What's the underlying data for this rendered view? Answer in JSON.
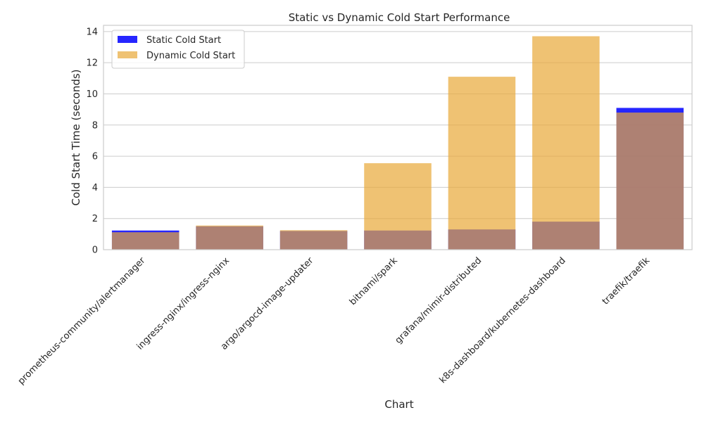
{
  "chart_data": {
    "type": "bar",
    "title": "Static vs Dynamic Cold Start Performance",
    "xlabel": "Chart",
    "ylabel": "Cold Start Time (seconds)",
    "ylim": [
      0,
      14.4
    ],
    "yticks": [
      0,
      2,
      4,
      6,
      8,
      10,
      12,
      14
    ],
    "grid": true,
    "legend_position": "top-left",
    "categories": [
      "prometheus-community/alertmanager",
      "ingress-nginx/ingress-nginx",
      "argo/argocd-image-updater",
      "bitnami/spark",
      "grafana/mimir-distributed",
      "k8s-dashboard/kubernetes-dashboard",
      "traefik/traefik"
    ],
    "series": [
      {
        "name": "Static Cold Start",
        "color": "#0000ff",
        "opacity": 0.85,
        "values": [
          1.23,
          1.5,
          1.2,
          1.23,
          1.3,
          1.8,
          9.1
        ]
      },
      {
        "name": "Dynamic Cold Start",
        "color": "#e8a838",
        "opacity": 0.7,
        "values": [
          1.12,
          1.55,
          1.25,
          5.55,
          11.1,
          13.7,
          8.8
        ]
      }
    ]
  }
}
